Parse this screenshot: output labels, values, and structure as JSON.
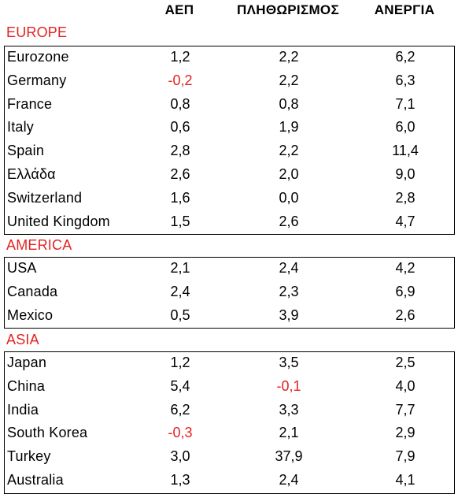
{
  "header": {
    "col1": "ΑΕΠ",
    "col2": "ΠΛΗΘΩΡΙΣΜΟΣ",
    "col3": "ΑΝΕΡΓΙΑ"
  },
  "regions": [
    {
      "label": "EUROPE",
      "rows": [
        {
          "name": "Eurozone",
          "gdp": "1,2",
          "inflation": "2,2",
          "unemployment": "6,2"
        },
        {
          "name": "Germany",
          "gdp": "-0,2",
          "inflation": "2,2",
          "unemployment": "6,3"
        },
        {
          "name": "France",
          "gdp": "0,8",
          "inflation": "0,8",
          "unemployment": "7,1"
        },
        {
          "name": "Italy",
          "gdp": "0,6",
          "inflation": "1,9",
          "unemployment": "6,0"
        },
        {
          "name": "Spain",
          "gdp": "2,8",
          "inflation": "2,2",
          "unemployment": "11,4"
        },
        {
          "name": "Ελλάδα",
          "gdp": "2,6",
          "inflation": "2,0",
          "unemployment": "9,0"
        },
        {
          "name": "Switzerland",
          "gdp": "1,6",
          "inflation": "0,0",
          "unemployment": "2,8"
        },
        {
          "name": "United Kingdom",
          "gdp": "1,5",
          "inflation": "2,6",
          "unemployment": "4,7"
        }
      ]
    },
    {
      "label": "AMERICA",
      "rows": [
        {
          "name": "USA",
          "gdp": "2,1",
          "inflation": "2,4",
          "unemployment": "4,2"
        },
        {
          "name": "Canada",
          "gdp": "2,4",
          "inflation": "2,3",
          "unemployment": "6,9"
        },
        {
          "name": "Mexico",
          "gdp": "0,5",
          "inflation": "3,9",
          "unemployment": "2,6"
        }
      ]
    },
    {
      "label": "ASIA",
      "rows": [
        {
          "name": "Japan",
          "gdp": "1,2",
          "inflation": "3,5",
          "unemployment": "2,5"
        },
        {
          "name": "China",
          "gdp": "5,4",
          "inflation": "-0,1",
          "unemployment": "4,0"
        },
        {
          "name": "India",
          "gdp": "6,2",
          "inflation": "3,3",
          "unemployment": "7,7"
        },
        {
          "name": "South Korea",
          "gdp": "-0,3",
          "inflation": "2,1",
          "unemployment": "2,9"
        },
        {
          "name": "Turkey",
          "gdp": "3,0",
          "inflation": "37,9",
          "unemployment": "7,9"
        },
        {
          "name": "Australia",
          "gdp": "1,3",
          "inflation": "2,4",
          "unemployment": "4,1"
        }
      ]
    }
  ],
  "colors": {
    "region_label": "#e32222",
    "negative_value": "#e32222",
    "text": "#000000",
    "border": "#000000"
  }
}
